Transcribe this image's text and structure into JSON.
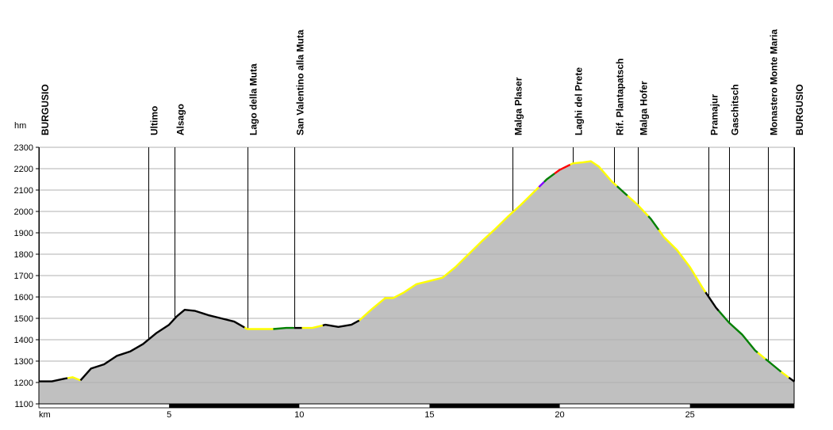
{
  "chart_data": {
    "type": "area",
    "title": "",
    "xlabel": "km",
    "ylabel": "hm",
    "xlim": [
      0,
      29
    ],
    "ylim": [
      1100,
      2300
    ],
    "grid": true,
    "y_ticks": [
      1100,
      1200,
      1300,
      1400,
      1500,
      1600,
      1700,
      1800,
      1900,
      2000,
      2100,
      2200,
      2300
    ],
    "x_ticks": [
      5,
      10,
      15,
      20,
      25
    ],
    "profile": {
      "x": [
        0,
        0.5,
        1.0,
        1.3,
        1.6,
        2.0,
        2.5,
        3.0,
        3.5,
        4.0,
        4.5,
        5.0,
        5.3,
        5.6,
        6.0,
        6.5,
        7.0,
        7.5,
        8.0,
        9.0,
        9.5,
        10.0,
        10.5,
        11.0,
        11.5,
        12.0,
        12.3,
        12.8,
        13.3,
        13.6,
        14.0,
        14.5,
        15.0,
        15.5,
        16.0,
        16.5,
        17.0,
        17.5,
        18.0,
        18.5,
        19.0,
        19.5,
        20.0,
        20.5,
        20.9,
        21.2,
        21.5,
        22.0,
        22.5,
        23.0,
        23.5,
        24.0,
        24.5,
        25.0,
        25.5,
        26.0,
        26.5,
        27.0,
        27.5,
        28.0,
        28.5,
        29.0
      ],
      "y": [
        1205,
        1205,
        1218,
        1225,
        1210,
        1265,
        1285,
        1325,
        1345,
        1380,
        1430,
        1470,
        1510,
        1540,
        1535,
        1515,
        1500,
        1485,
        1450,
        1450,
        1455,
        1455,
        1455,
        1470,
        1460,
        1470,
        1490,
        1545,
        1595,
        1595,
        1620,
        1660,
        1675,
        1690,
        1740,
        1800,
        1860,
        1915,
        1975,
        2030,
        2090,
        2150,
        2195,
        2225,
        2230,
        2235,
        2210,
        2140,
        2085,
        2030,
        1965,
        1880,
        1820,
        1740,
        1640,
        1550,
        1480,
        1425,
        1350,
        1300,
        1250,
        1205
      ]
    },
    "segments": [
      {
        "from": 0,
        "to": 1.1,
        "color": "#000000"
      },
      {
        "from": 1.1,
        "to": 1.6,
        "color": "#ffff00"
      },
      {
        "from": 1.6,
        "to": 7.9,
        "color": "#000000"
      },
      {
        "from": 7.9,
        "to": 9.0,
        "color": "#ffff00"
      },
      {
        "from": 9.0,
        "to": 9.8,
        "color": "#008000"
      },
      {
        "from": 9.8,
        "to": 10.1,
        "color": "#000000"
      },
      {
        "from": 10.1,
        "to": 10.9,
        "color": "#ffff00"
      },
      {
        "from": 10.9,
        "to": 12.3,
        "color": "#000000"
      },
      {
        "from": 12.3,
        "to": 19.2,
        "color": "#ffff00"
      },
      {
        "from": 19.2,
        "to": 19.4,
        "color": "#8000ff"
      },
      {
        "from": 19.4,
        "to": 19.8,
        "color": "#008000"
      },
      {
        "from": 19.8,
        "to": 20.4,
        "color": "#ff0000"
      },
      {
        "from": 20.4,
        "to": 22.2,
        "color": "#ffff00"
      },
      {
        "from": 22.2,
        "to": 22.6,
        "color": "#008000"
      },
      {
        "from": 22.6,
        "to": 23.4,
        "color": "#ffff00"
      },
      {
        "from": 23.4,
        "to": 23.8,
        "color": "#008000"
      },
      {
        "from": 23.8,
        "to": 25.6,
        "color": "#ffff00"
      },
      {
        "from": 25.6,
        "to": 26.1,
        "color": "#000000"
      },
      {
        "from": 26.1,
        "to": 27.6,
        "color": "#008000"
      },
      {
        "from": 27.6,
        "to": 27.9,
        "color": "#ffff00"
      },
      {
        "from": 27.9,
        "to": 28.5,
        "color": "#008000"
      },
      {
        "from": 28.5,
        "to": 28.8,
        "color": "#ffff00"
      },
      {
        "from": 28.8,
        "to": 29.0,
        "color": "#000000"
      }
    ],
    "waypoints": [
      {
        "label": "BURGUSIO",
        "x": 0.0
      },
      {
        "label": "Ultimo",
        "x": 4.2
      },
      {
        "label": "Alsago",
        "x": 5.2
      },
      {
        "label": "Lago della Muta",
        "x": 8.0
      },
      {
        "label": "San Valentino alla Muta",
        "x": 9.8
      },
      {
        "label": "Malga Plaser",
        "x": 18.2
      },
      {
        "label": "Laghi del Prete",
        "x": 20.5
      },
      {
        "label": "Rif. Plantapatsch",
        "x": 22.1
      },
      {
        "label": "Malga Hofer",
        "x": 23.0
      },
      {
        "label": "Pramajur",
        "x": 25.7
      },
      {
        "label": "Gaschitsch",
        "x": 26.5
      },
      {
        "label": "Monastero Monte Maria",
        "x": 28.0
      },
      {
        "label": "BURGUSIO",
        "x": 29.0
      }
    ],
    "colors": {
      "area": "#c0c0c0",
      "grid": "#b0b0b0",
      "base": "#000000",
      "axis_band": "#000000"
    }
  }
}
